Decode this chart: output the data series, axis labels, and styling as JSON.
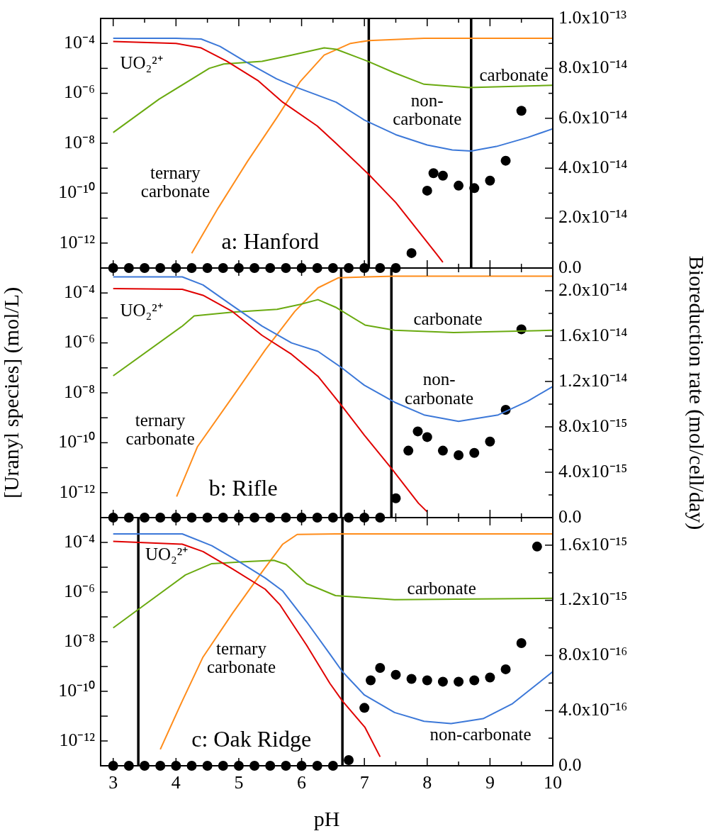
{
  "chart_data": [
    {
      "type": "line",
      "title": "a: Hanford",
      "log": true,
      "xlim": [
        2.8,
        10
      ],
      "xticks": [
        3,
        {
          "value": 3.5,
          "label": null
        },
        4,
        {
          "value": 4.5,
          "label": null
        },
        5,
        {
          "value": 5.5,
          "label": null
        },
        6,
        {
          "value": 6.5,
          "label": null
        },
        7,
        {
          "value": 7.5,
          "label": null
        },
        8,
        {
          "value": 8.5,
          "label": null
        },
        9,
        {
          "value": 9.5,
          "label": null
        },
        10
      ],
      "ylim": [
        1e-13,
        0.001
      ],
      "yticks": [
        {
          "value": 1e-13,
          "label": null
        },
        {
          "value": 1e-12,
          "label": "10⁻¹²"
        },
        {
          "value": 1e-11,
          "label": null
        },
        {
          "value": 1e-10,
          "label": "10⁻¹⁰"
        },
        {
          "value": 1e-09,
          "label": null
        },
        {
          "value": 1e-08,
          "label": "10⁻⁸"
        },
        {
          "value": 1e-07,
          "label": null
        },
        {
          "value": 1e-06,
          "label": "10⁻⁶"
        },
        {
          "value": 1e-05,
          "label": null
        },
        {
          "value": 0.0001,
          "label": "10⁻⁴"
        },
        {
          "value": 0.001,
          "label": null
        }
      ],
      "y2lim": [
        0,
        1e-13
      ],
      "y2ticks": [
        {
          "value": 0,
          "label": "0.0"
        },
        {
          "value": 1e-14,
          "label": null
        },
        {
          "value": 2e-14,
          "label": "2.0x10⁻¹⁴"
        },
        {
          "value": 3e-14,
          "label": null
        },
        {
          "value": 4e-14,
          "label": "4.0x10⁻¹⁴"
        },
        {
          "value": 5e-14,
          "label": null
        },
        {
          "value": 6e-14,
          "label": "6.0x10⁻¹⁴"
        },
        {
          "value": 7e-14,
          "label": null
        },
        {
          "value": 8e-14,
          "label": "8.0x10⁻¹⁴"
        },
        {
          "value": 9e-14,
          "label": null
        },
        {
          "value": 1e-13,
          "label": "1.0x10⁻¹³"
        }
      ],
      "tick_labels": "y",
      "ref_lines": [
        {
          "axis": "x",
          "value": 7.07,
          "color": "#000000"
        },
        {
          "axis": "x",
          "value": 8.7,
          "color": "#000000"
        }
      ],
      "series": [
        {
          "name": "UO₂²⁺",
          "color": "#e00000",
          "x": [
            3,
            4,
            4.4,
            4.8,
            5.3,
            5.7,
            6.25,
            6.55,
            7.07,
            7.5,
            8.15,
            8.25
          ],
          "values": [
            0.00012,
            0.0001,
            6.6e-05,
            2e-05,
            3.3e-06,
            4.4e-07,
            4.9e-08,
            9.8e-09,
            5.6e-10,
            4.2e-11,
            3.6e-13,
            1.7e-13
          ]
        },
        {
          "name": "non-\ncarbonate",
          "color": "#3c78d8",
          "x": [
            3,
            3.5,
            4,
            4.4,
            4.7,
            5.1,
            5.6,
            5.9,
            6.25,
            6.55,
            7,
            7.5,
            8,
            8.4,
            8.7,
            9.1,
            9.6,
            10
          ],
          "values": [
            0.00016,
            0.00016,
            0.00016,
            0.00015,
            7.6e-05,
            1.9e-05,
            3.8e-06,
            1.8e-06,
            8.5e-07,
            4.4e-07,
            8.5e-08,
            2.2e-08,
            8.5e-09,
            5.4e-09,
            4.9e-09,
            7.4e-09,
            1.7e-08,
            3.8e-08
          ]
        },
        {
          "name": "carbonate",
          "color": "#6aaa10",
          "x": [
            3,
            3.73,
            4.53,
            4.76,
            5.37,
            5.84,
            6.36,
            6.55,
            7.06,
            7.48,
            7.95,
            8.66,
            10
          ],
          "values": [
            2.7e-08,
            5.8e-07,
            1e-05,
            1.5e-05,
            1.9e-05,
            3.4e-05,
            6.6e-05,
            5.8e-05,
            1.9e-05,
            6.6e-06,
            2.3e-06,
            1.7e-06,
            2.1e-06
          ]
        },
        {
          "name": "ternary\ncarbonate",
          "color": "#ff8c1a",
          "x": [
            4.25,
            4.67,
            5.14,
            5.61,
            5.98,
            6.36,
            6.78,
            7.07,
            7.95,
            10
          ],
          "values": [
            3.9e-13,
            2.5e-11,
            1.9e-09,
            1.1e-07,
            3e-06,
            3.4e-05,
            0.0001,
            0.00013,
            0.00016,
            0.00016
          ]
        },
        {
          "type": "scatter",
          "axis": "y2",
          "marker": "circle",
          "color": "#000000",
          "x": [
            3,
            3.25,
            3.5,
            3.75,
            4,
            4.25,
            4.5,
            4.75,
            5,
            5.25,
            5.5,
            5.75,
            6,
            6.25,
            6.5,
            6.75,
            7,
            7.25,
            7.5,
            7.75,
            8,
            8.1,
            8.25,
            8.5,
            8.75,
            9,
            9.25,
            9.5
          ],
          "values": [
            0,
            0,
            0,
            0,
            0,
            0,
            0,
            0,
            0,
            0,
            0,
            0,
            0,
            0,
            0,
            0,
            0,
            0,
            0,
            6e-15,
            3.1e-14,
            3.8e-14,
            3.7e-14,
            3.3e-14,
            3.2e-14,
            3.5e-14,
            4.3e-14,
            6.3e-14
          ]
        }
      ]
    },
    {
      "type": "line",
      "title": "b: Rifle",
      "log": true,
      "ylabel": "[Uranyl species] (mol/L)",
      "y2label": "Bioreduction rate (mol/cell/day)",
      "xlim": [
        2.8,
        10
      ],
      "xticks": [
        3,
        {
          "value": 3.5,
          "label": null
        },
        4,
        {
          "value": 4.5,
          "label": null
        },
        5,
        {
          "value": 5.5,
          "label": null
        },
        6,
        {
          "value": 6.5,
          "label": null
        },
        7,
        {
          "value": 7.5,
          "label": null
        },
        8,
        {
          "value": 8.5,
          "label": null
        },
        9,
        {
          "value": 9.5,
          "label": null
        },
        10
      ],
      "ylim": [
        1e-13,
        0.001
      ],
      "yticks": [
        {
          "value": 1e-13,
          "label": null
        },
        {
          "value": 1e-12,
          "label": "10⁻¹²"
        },
        {
          "value": 1e-11,
          "label": null
        },
        {
          "value": 1e-10,
          "label": "10⁻¹⁰"
        },
        {
          "value": 1e-09,
          "label": null
        },
        {
          "value": 1e-08,
          "label": "10⁻⁸"
        },
        {
          "value": 1e-07,
          "label": null
        },
        {
          "value": 1e-06,
          "label": "10⁻⁶"
        },
        {
          "value": 1e-05,
          "label": null
        },
        {
          "value": 0.0001,
          "label": "10⁻⁴"
        },
        {
          "value": 0.001,
          "label": null
        }
      ],
      "y2lim": [
        0,
        2.2e-14
      ],
      "y2ticks": [
        {
          "value": 0,
          "label": "0.0"
        },
        {
          "value": 2e-15,
          "label": null
        },
        {
          "value": 4e-15,
          "label": "4.0x10⁻¹⁵"
        },
        {
          "value": 6e-15,
          "label": null
        },
        {
          "value": 8e-15,
          "label": "8.0x10⁻¹⁵"
        },
        {
          "value": 1e-14,
          "label": null
        },
        {
          "value": 1.2e-14,
          "label": "1.2x10⁻¹⁴"
        },
        {
          "value": 1.4e-14,
          "label": null
        },
        {
          "value": 1.6e-14,
          "label": "1.6x10⁻¹⁴"
        },
        {
          "value": 1.8e-14,
          "label": null
        },
        {
          "value": 2e-14,
          "label": "2.0x10⁻¹⁴"
        }
      ],
      "tick_labels": "y",
      "ref_lines": [
        {
          "axis": "x",
          "value": 6.63,
          "color": "#000000"
        },
        {
          "axis": "x",
          "value": 7.43,
          "color": "#000000"
        }
      ],
      "series": [
        {
          "name": "UO₂²⁺",
          "color": "#e00000",
          "x": [
            3,
            4.1,
            4.43,
            4.9,
            5.37,
            5.84,
            6.26,
            6.64,
            7,
            7.44,
            7.86,
            8
          ],
          "values": [
            0.00015,
            0.00014,
            8.1e-05,
            1.8e-05,
            2e-06,
            3.5e-07,
            4.6e-08,
            3e-09,
            2e-10,
            8.7e-12,
            3.8e-13,
            1.7e-13
          ]
        },
        {
          "name": "non-\ncarbonate",
          "color": "#3c78d8",
          "x": [
            3,
            4.1,
            4.43,
            4.9,
            5.37,
            5.84,
            6.26,
            6.64,
            7,
            7.5,
            7.95,
            8.5,
            9.13,
            9.6,
            10
          ],
          "values": [
            0.00044,
            0.00044,
            0.00021,
            3.1e-05,
            4.7e-06,
            1e-06,
            4.6e-07,
            1e-07,
            2e-08,
            4e-09,
            1.3e-09,
            7.2e-10,
            1.3e-09,
            4.6e-09,
            1.8e-08
          ]
        },
        {
          "name": "carbonate",
          "color": "#6aaa10",
          "x": [
            3,
            4.1,
            4.29,
            4.9,
            5.61,
            5.98,
            6.26,
            6.54,
            7.01,
            7.48,
            8.42,
            10
          ],
          "values": [
            4.8e-08,
            4.7e-06,
            1.2e-05,
            1.7e-05,
            2.2e-05,
            3.5e-05,
            5.4e-05,
            2.7e-05,
            5.2e-06,
            3.2e-06,
            2.6e-06,
            3.2e-06
          ]
        },
        {
          "name": "ternary\ncarbonate",
          "color": "#ff8c1a",
          "x": [
            4.01,
            4.34,
            4.9,
            5.42,
            5.89,
            6.26,
            6.59,
            7.48,
            10
          ],
          "values": [
            6.9e-13,
            6.8e-11,
            6.8e-09,
            5.2e-07,
            1.8e-05,
            0.00016,
            0.00041,
            0.00047,
            0.00047
          ]
        },
        {
          "type": "scatter",
          "axis": "y2",
          "marker": "circle",
          "color": "#000000",
          "x": [
            3,
            3.25,
            3.5,
            3.75,
            4,
            4.25,
            4.5,
            4.75,
            5,
            5.25,
            5.5,
            5.75,
            6,
            6.25,
            6.5,
            6.75,
            7,
            7.25,
            7.5,
            7.7,
            7.85,
            8,
            8.25,
            8.5,
            8.75,
            9,
            9.25,
            9.5
          ],
          "values": [
            0,
            0,
            0,
            0,
            0,
            0,
            0,
            0,
            0,
            0,
            0,
            0,
            0,
            0,
            0,
            0,
            0,
            0,
            1.7e-15,
            5.9e-15,
            7.6e-15,
            7.1e-15,
            5.9e-15,
            5.5e-15,
            5.7e-15,
            6.7e-15,
            9.5e-15,
            1.66e-14
          ]
        }
      ]
    },
    {
      "type": "line",
      "title": "c: Oak Ridge",
      "log": true,
      "xlabel": "pH",
      "xlim": [
        2.8,
        10
      ],
      "xticks": [
        3,
        {
          "value": 3.5,
          "label": null
        },
        4,
        {
          "value": 4.5,
          "label": null
        },
        5,
        {
          "value": 5.5,
          "label": null
        },
        6,
        {
          "value": 6.5,
          "label": null
        },
        7,
        {
          "value": 7.5,
          "label": null
        },
        8,
        {
          "value": 8.5,
          "label": null
        },
        9,
        {
          "value": 9.5,
          "label": null
        },
        10
      ],
      "ylim": [
        1e-13,
        0.001
      ],
      "yticks": [
        {
          "value": 1e-13,
          "label": null
        },
        {
          "value": 1e-12,
          "label": "10⁻¹²"
        },
        {
          "value": 1e-11,
          "label": null
        },
        {
          "value": 1e-10,
          "label": "10⁻¹⁰"
        },
        {
          "value": 1e-09,
          "label": null
        },
        {
          "value": 1e-08,
          "label": "10⁻⁸"
        },
        {
          "value": 1e-07,
          "label": null
        },
        {
          "value": 1e-06,
          "label": "10⁻⁶"
        },
        {
          "value": 1e-05,
          "label": null
        },
        {
          "value": 0.0001,
          "label": "10⁻⁴"
        },
        {
          "value": 0.001,
          "label": null
        }
      ],
      "y2lim": [
        0,
        1.8e-15
      ],
      "y2ticks": [
        {
          "value": 0,
          "label": "0.0"
        },
        {
          "value": 2e-16,
          "label": null
        },
        {
          "value": 4e-16,
          "label": "4.0x10⁻¹⁶"
        },
        {
          "value": 6e-16,
          "label": null
        },
        {
          "value": 8e-16,
          "label": "8.0x10⁻¹⁶"
        },
        {
          "value": 1e-15,
          "label": null
        },
        {
          "value": 1.2e-15,
          "label": "1.2x10⁻¹⁵"
        },
        {
          "value": 1.4e-15,
          "label": null
        },
        {
          "value": 1.6e-15,
          "label": "1.6x10⁻¹⁵"
        }
      ],
      "ref_lines": [
        {
          "axis": "x",
          "value": 3.4,
          "color": "#000000"
        },
        {
          "axis": "x",
          "value": 6.65,
          "color": "#000000"
        }
      ],
      "series": [
        {
          "name": "UO₂²⁺",
          "color": "#e00000",
          "x": [
            3,
            4.1,
            4.43,
            4.9,
            5.42,
            5.65,
            6.08,
            6.45,
            6.65,
            7.01,
            7.25
          ],
          "values": [
            0.00011,
            8.5e-05,
            4.3e-05,
            8.5e-06,
            1.3e-06,
            3.2e-07,
            7.2e-09,
            2.1e-10,
            4.1e-11,
            3.5e-12,
            2.3e-13
          ]
        },
        {
          "name": "non-carbonate",
          "color": "#3c78d8",
          "x": [
            3,
            4.1,
            4.57,
            5,
            5.42,
            5.7,
            6.08,
            6.45,
            6.65,
            7,
            7.48,
            7.95,
            8.38,
            8.89,
            9.36,
            10
          ],
          "values": [
            0.00022,
            0.00022,
            7.4e-05,
            1.7e-05,
            3.7e-06,
            1.1e-06,
            6.3e-08,
            3.2e-09,
            6.2e-10,
            7.1e-11,
            1.4e-11,
            6.2e-12,
            5e-12,
            7.9e-12,
            3.2e-11,
            6.2e-10
          ]
        },
        {
          "name": "carbonate",
          "color": "#6aaa10",
          "x": [
            3,
            3.4,
            4.15,
            4.57,
            5.14,
            5.56,
            5.75,
            6.08,
            6.54,
            7.48,
            10
          ],
          "values": [
            3.6e-08,
            2e-07,
            4.9e-06,
            1.4e-05,
            1.7e-05,
            1.9e-05,
            1.3e-05,
            2.2e-06,
            7.2e-07,
            4.9e-07,
            5.6e-07
          ]
        },
        {
          "name": "ternary\ncarbonate",
          "color": "#ff8c1a",
          "x": [
            3.75,
            4.1,
            4.43,
            4.9,
            5.37,
            5.7,
            5.93,
            6.54,
            10
          ],
          "values": [
            4.6e-13,
            4.1e-11,
            2.4e-09,
            1.4e-07,
            6.5e-06,
            8.5e-05,
            0.00021,
            0.00022,
            0.00022
          ]
        },
        {
          "type": "scatter",
          "axis": "y2",
          "marker": "circle",
          "color": "#000000",
          "x": [
            3,
            3.25,
            3.5,
            3.75,
            4,
            4.25,
            4.5,
            4.75,
            5,
            5.25,
            5.5,
            5.75,
            6,
            6.25,
            6.5,
            6.75,
            7,
            7.1,
            7.25,
            7.5,
            7.75,
            8,
            8.25,
            8.5,
            8.75,
            9,
            9.25,
            9.5,
            9.75
          ],
          "values": [
            0,
            0,
            0,
            0,
            0,
            0,
            0,
            0,
            0,
            0,
            0,
            0,
            0,
            0,
            0,
            4.1e-17,
            4.2e-16,
            6.2e-16,
            7.1e-16,
            6.6e-16,
            6.3e-16,
            6.2e-16,
            6.1e-16,
            6.1e-16,
            6.2e-16,
            6.4e-16,
            7e-16,
            8.9e-16,
            1.59e-15
          ]
        }
      ]
    }
  ]
}
